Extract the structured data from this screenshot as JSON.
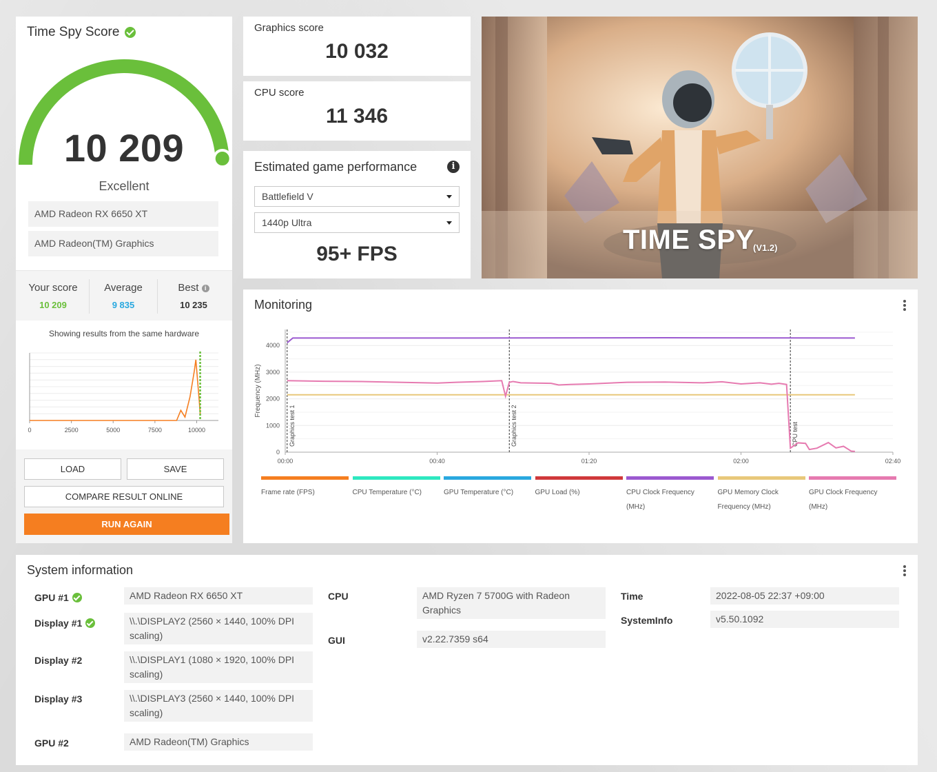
{
  "score_card": {
    "title": "Time Spy Score",
    "score": "10 209",
    "gauge_level": 0.98,
    "rating": "Excellent",
    "hardware": [
      "AMD Radeon RX 6650 XT",
      "AMD Radeon(TM) Graphics"
    ],
    "stats": {
      "your_label": "Your score",
      "your_value": "10 209",
      "avg_label": "Average",
      "avg_value": "9 835",
      "best_label": "Best",
      "best_value": "10 235",
      "info_glyph": "i"
    },
    "showing_text": "Showing results from the same hardware",
    "buttons": {
      "load": "LOAD",
      "save": "SAVE",
      "compare": "COMPARE RESULT ONLINE",
      "run": "RUN AGAIN"
    },
    "colors": {
      "gauge": "#6abf3b",
      "your": "#6abf3b",
      "avg": "#29a8df",
      "run": "#f57e20"
    }
  },
  "distribution_chart": {
    "type": "line",
    "x_ticks": [
      "0",
      "2500",
      "5000",
      "7500",
      "10000"
    ],
    "xlim": [
      0,
      11300
    ],
    "points": [
      [
        0,
        0
      ],
      [
        8800,
        0
      ],
      [
        9050,
        0.15
      ],
      [
        9300,
        0.05
      ],
      [
        9600,
        0.35
      ],
      [
        9850,
        0.72
      ],
      [
        9950,
        0.9
      ],
      [
        10050,
        0.6
      ],
      [
        10150,
        0.3
      ],
      [
        10209,
        0.1
      ]
    ],
    "marker_value": 10209,
    "line_color": "#f57e20",
    "marker_color": "#6abf3b"
  },
  "graphics_score": {
    "label": "Graphics score",
    "value": "10 032"
  },
  "cpu_score": {
    "label": "CPU score",
    "value": "11 346"
  },
  "estimated": {
    "title": "Estimated game performance",
    "info_glyph": "i",
    "game": "Battlefield V",
    "resolution": "1440p Ultra",
    "fps": "95+ FPS"
  },
  "banner": {
    "title": "TIME SPY",
    "version": "(V1.2)"
  },
  "monitoring": {
    "title": "Monitoring",
    "chart_data": {
      "type": "line",
      "ylabel": "Frequency (MHz)",
      "y_ticks": [
        "0",
        "1000",
        "2000",
        "3000",
        "4000"
      ],
      "ylim": [
        0,
        4600
      ],
      "x_ticks": [
        "00:00",
        "00:40",
        "01:20",
        "02:00",
        "02:40"
      ],
      "xlim": [
        0,
        160
      ],
      "markers": [
        {
          "label": "Graphics test 1",
          "x": 0.5
        },
        {
          "label": "Graphics test 2",
          "x": 59
        },
        {
          "label": "CPU test",
          "x": 133
        }
      ],
      "series": [
        {
          "name": "CPU Clock Frequency (MHz)",
          "color": "#9b59d0",
          "x": [
            0.5,
            2,
            50,
            100,
            150
          ],
          "y": [
            4100,
            4280,
            4280,
            4290,
            4280
          ]
        },
        {
          "name": "GPU Memory Clock Frequency (MHz)",
          "color": "#e8c87a",
          "x": [
            0.5,
            150
          ],
          "y": [
            2150,
            2150
          ]
        },
        {
          "name": "GPU Clock Frequency (MHz)",
          "color": "#e67ab0",
          "x": [
            0.5,
            10,
            20,
            30,
            40,
            45,
            52,
            57,
            58,
            59,
            60,
            62,
            70,
            72,
            75,
            80,
            90,
            100,
            110,
            115,
            120,
            125,
            128,
            130,
            132,
            133,
            135,
            137,
            138,
            140,
            143,
            145,
            147,
            149,
            150
          ],
          "y": [
            2680,
            2660,
            2650,
            2620,
            2590,
            2620,
            2650,
            2680,
            2100,
            2620,
            2650,
            2600,
            2580,
            2520,
            2540,
            2560,
            2620,
            2630,
            2600,
            2640,
            2560,
            2600,
            2550,
            2580,
            2540,
            150,
            350,
            330,
            100,
            150,
            360,
            160,
            220,
            40,
            30
          ]
        }
      ]
    },
    "legend": [
      {
        "label": "Frame rate (FPS)",
        "color": "#f57e20"
      },
      {
        "label": "CPU Temperature (°C)",
        "color": "#2ee8c0"
      },
      {
        "label": "GPU Temperature (°C)",
        "color": "#29a8df"
      },
      {
        "label": "GPU Load (%)",
        "color": "#d0393b"
      },
      {
        "label": "CPU Clock Frequency (MHz)",
        "color": "#9b59d0"
      },
      {
        "label": "GPU Memory Clock Frequency (MHz)",
        "color": "#e8c87a"
      },
      {
        "label": "GPU Clock Frequency (MHz)",
        "color": "#e67ab0"
      }
    ]
  },
  "system_info": {
    "title": "System information",
    "gpu1_label": "GPU #1",
    "gpu1": "AMD Radeon RX 6650 XT",
    "display1_label": "Display #1",
    "display1": "\\\\.\\DISPLAY2 (2560 × 1440, 100% DPI scaling)",
    "display2_label": "Display #2",
    "display2": "\\\\.\\DISPLAY1 (1080 × 1920, 100% DPI scaling)",
    "display3_label": "Display #3",
    "display3": "\\\\.\\DISPLAY3 (2560 × 1440, 100% DPI scaling)",
    "gpu2_label": "GPU #2",
    "gpu2": "AMD Radeon(TM) Graphics",
    "cpu_label": "CPU",
    "cpu": "AMD Ryzen 7 5700G with Radeon Graphics",
    "gui_label": "GUI",
    "gui": "v2.22.7359 s64",
    "time_label": "Time",
    "time": "2022-08-05 22:37 +09:00",
    "sysinfo_label": "SystemInfo",
    "sysinfo": "v5.50.1092"
  }
}
